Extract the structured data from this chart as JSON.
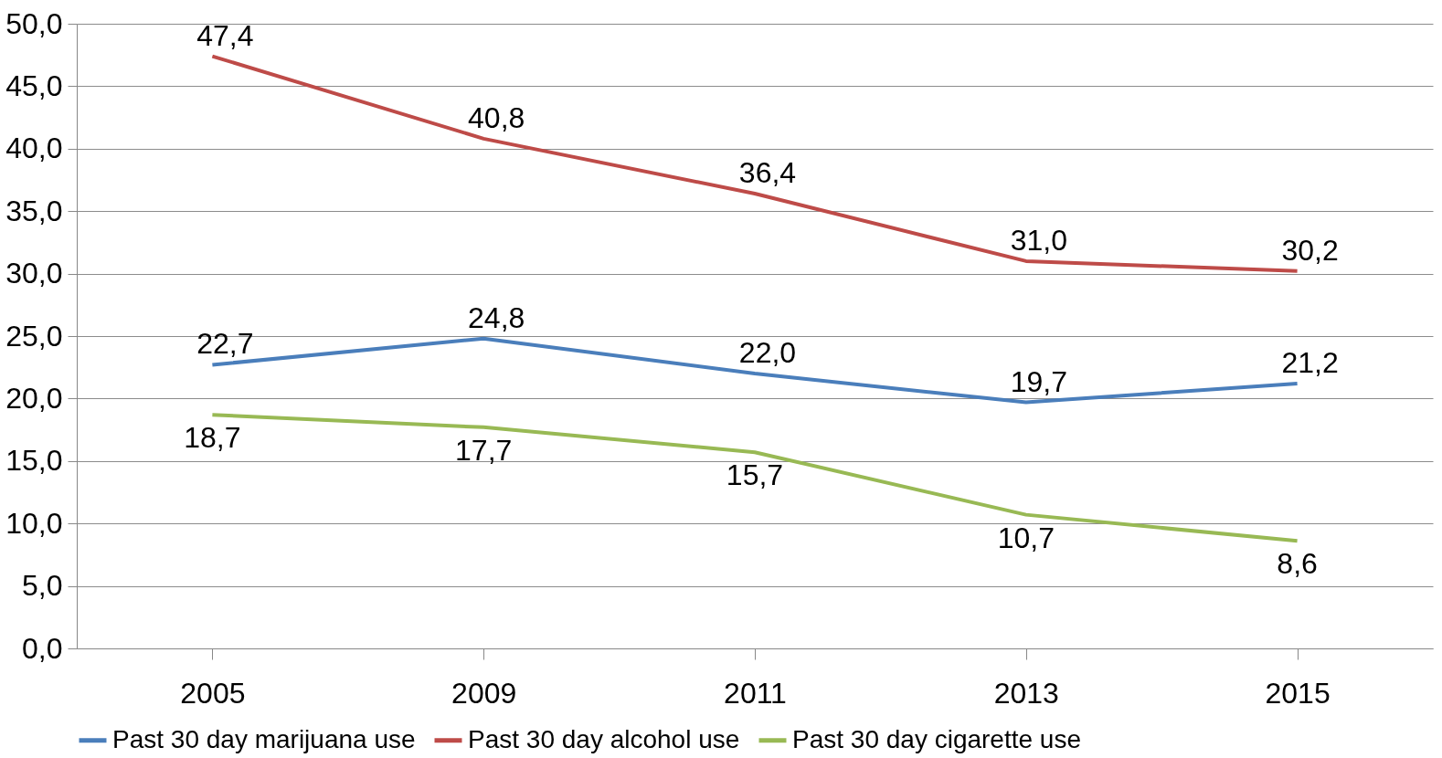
{
  "chart_data": {
    "type": "line",
    "categories": [
      "2005",
      "2009",
      "2011",
      "2013",
      "2015"
    ],
    "series": [
      {
        "name": "Past 30 day marijuana use",
        "color": "#4a7ebb",
        "values": [
          22.7,
          24.8,
          22.0,
          19.7,
          21.2
        ],
        "value_labels": [
          "22,7",
          "24,8",
          "22,0",
          "19,7",
          "21,2"
        ]
      },
      {
        "name": "Past 30 day alcohol use",
        "color": "#be4b48",
        "values": [
          47.4,
          40.8,
          36.4,
          31.0,
          30.2
        ],
        "value_labels": [
          "47,4",
          "40,8",
          "36,4",
          "31,0",
          "30,2"
        ]
      },
      {
        "name": "Past 30 day cigarette use",
        "color": "#98b954",
        "values": [
          18.7,
          17.7,
          15.7,
          10.7,
          8.6
        ],
        "value_labels": [
          "18,7",
          "17,7",
          "15,7",
          "10,7",
          "8,6"
        ]
      }
    ],
    "ylim": [
      0,
      50
    ],
    "yticks": [
      {
        "value": 0,
        "label": "0,0"
      },
      {
        "value": 5,
        "label": "5,0"
      },
      {
        "value": 10,
        "label": "10,0"
      },
      {
        "value": 15,
        "label": "15,0"
      },
      {
        "value": 20,
        "label": "20,0"
      },
      {
        "value": 25,
        "label": "25,0"
      },
      {
        "value": 30,
        "label": "30,0"
      },
      {
        "value": 35,
        "label": "35,0"
      },
      {
        "value": 40,
        "label": "40,0"
      },
      {
        "value": 45,
        "label": "45,0"
      },
      {
        "value": 50,
        "label": "50,0"
      }
    ],
    "grid": "y",
    "legend": "bottom",
    "marker": "none",
    "line_style": "solid"
  }
}
